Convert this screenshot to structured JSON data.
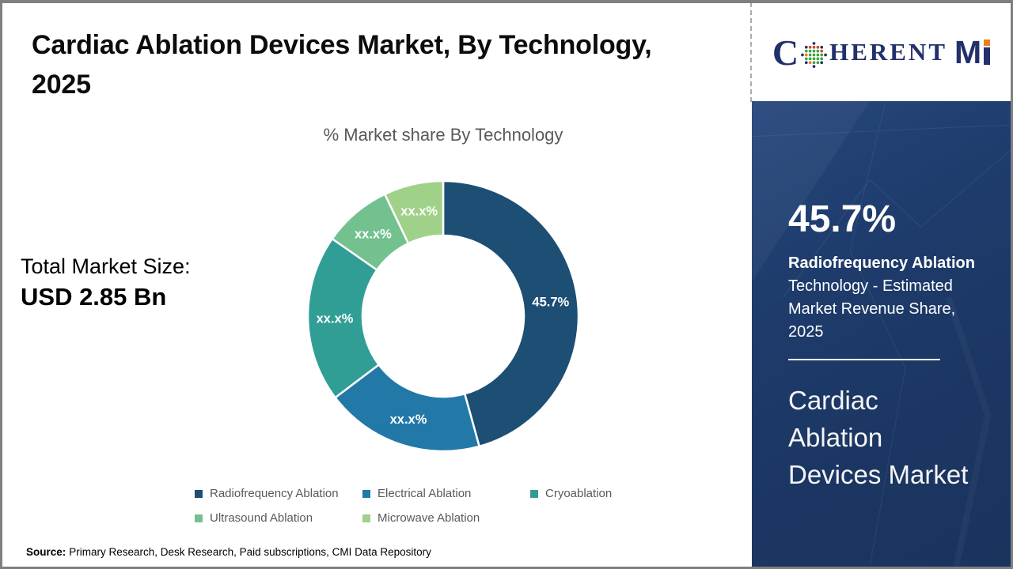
{
  "page": {
    "title_lines": [
      "Cardiac Ablation Devices Market, By Technology,",
      "2025"
    ],
    "source_label": "Source:",
    "source_text": "Primary Research, Desk Research, Paid subscriptions, CMI Data Repository"
  },
  "stats": {
    "total_label": "Total Market Size:",
    "total_value": "USD 2.85 Bn"
  },
  "logo": {
    "name": "CoherentMI",
    "text_c": "C",
    "text_herent": "HERENT",
    "text_m": "M",
    "globe_icon": "dotted-globe-icon",
    "navy": "#22306b",
    "orange": "#e8801d",
    "green": "#3da53f",
    "red": "#cf4a2e"
  },
  "chart_data": {
    "type": "pie",
    "subtype": "donut",
    "title": "% Market share By Technology",
    "hole_ratio": 0.6,
    "start_angle_deg": 0,
    "legend_position": "bottom",
    "segments": [
      {
        "label": "Radiofrequency Ablation",
        "display": "45.7%",
        "value_pct": 45.7,
        "color": "#1d4e74"
      },
      {
        "label": "Electrical Ablation",
        "display": "xx.x%",
        "value_pct": 19.0,
        "color": "#2279a8"
      },
      {
        "label": "Cryoablation",
        "display": "xx.x%",
        "value_pct": 20.0,
        "color": "#319e96"
      },
      {
        "label": "Ultrasound Ablation",
        "display": "xx.x%",
        "value_pct": 8.2,
        "color": "#73c18f"
      },
      {
        "label": "Microwave Ablation",
        "display": "xx.x%",
        "value_pct": 7.1,
        "color": "#a0d189"
      }
    ]
  },
  "sidebar": {
    "bg_color": "#1d3a68",
    "stat_value": "45.7%",
    "stat_label_bold": "Radiofrequency Ablation",
    "stat_label_lines": [
      "Technology - Estimated",
      "Market Revenue Share,",
      "2025"
    ],
    "market_title_lines": [
      "Cardiac",
      "Ablation",
      "Devices Market"
    ]
  }
}
